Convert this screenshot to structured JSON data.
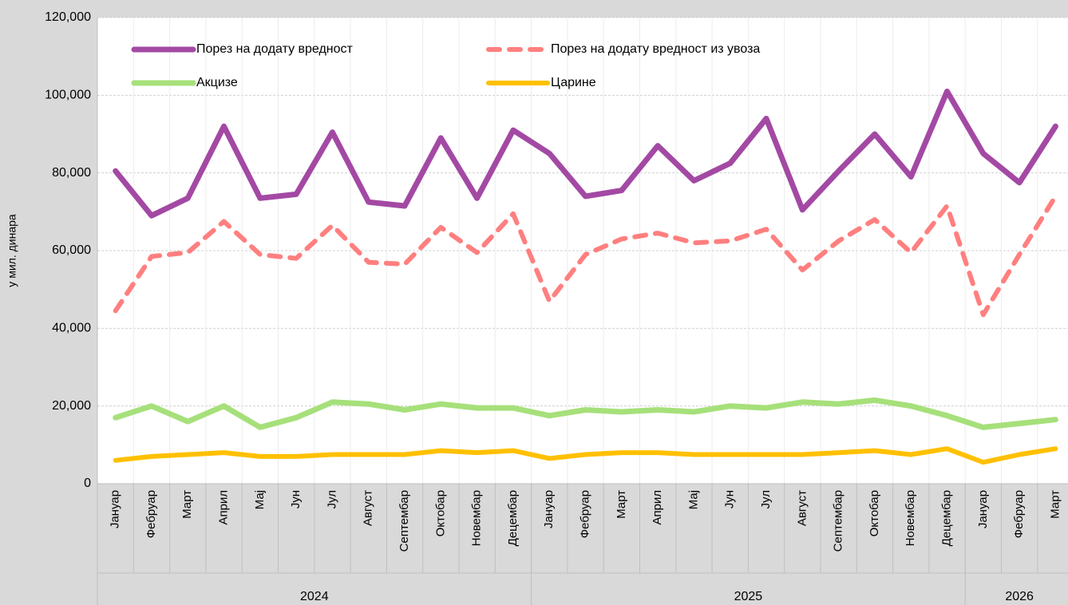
{
  "chart_data": {
    "type": "line",
    "y_axis_label": "у мил. динара",
    "groups": [
      {
        "label": "2024",
        "categories": [
          "Јануар",
          "Фебруар",
          "Март",
          "Април",
          "Мај",
          "Јун",
          "Јул",
          "Август",
          "Септембар",
          "Октобар",
          "Новембар",
          "Децембар"
        ]
      },
      {
        "label": "2025",
        "categories": [
          "Јануар",
          "Фебруар",
          "Март",
          "Април",
          "Мај",
          "Јун",
          "Јул",
          "Август",
          "Септембар",
          "Октобар",
          "Новембар",
          "Децембар"
        ]
      },
      {
        "label": "2026",
        "categories": [
          "Јануар",
          "Фебруар",
          "Март"
        ]
      }
    ],
    "series": [
      {
        "name": "Порез на додату вредност",
        "color": "#a349a4",
        "dashed": false,
        "values": [
          80500,
          69000,
          73500,
          92000,
          73500,
          74500,
          90500,
          72500,
          71500,
          89000,
          73500,
          91000,
          85000,
          74000,
          75500,
          87000,
          78000,
          82500,
          94000,
          70500,
          80500,
          90000,
          79000,
          101000,
          85000,
          77500,
          92000
        ]
      },
      {
        "name": "Порез на додату вредност из увоза",
        "color": "#ff7f7f",
        "dashed": true,
        "values": [
          44500,
          58500,
          59500,
          67500,
          59000,
          58000,
          66500,
          57000,
          56500,
          66000,
          59500,
          69500,
          47000,
          59000,
          63000,
          64500,
          62000,
          62500,
          65500,
          55000,
          62500,
          68000,
          59500,
          71500,
          43500,
          59000,
          74000
        ]
      },
      {
        "name": "Акцизе",
        "color": "#a6e07a",
        "dashed": false,
        "values": [
          17000,
          20000,
          16000,
          20000,
          14500,
          17000,
          21000,
          20500,
          19000,
          20500,
          19500,
          19500,
          17500,
          19000,
          18500,
          19000,
          18500,
          20000,
          19500,
          21000,
          20500,
          21500,
          20000,
          17500,
          14500,
          15500,
          16500
        ]
      },
      {
        "name": "Царине",
        "color": "#ffc000",
        "dashed": false,
        "values": [
          6000,
          7000,
          7500,
          8000,
          7000,
          7000,
          7500,
          7500,
          7500,
          8500,
          8000,
          8500,
          6500,
          7500,
          8000,
          8000,
          7500,
          7500,
          7500,
          7500,
          8000,
          8500,
          7500,
          9000,
          5500,
          7500,
          9000
        ]
      }
    ],
    "ylim": [
      0,
      120000
    ],
    "yticks": [
      0,
      {
        "value": 20000,
        "label": "20,000"
      },
      {
        "value": 40000,
        "label": "40,000"
      },
      {
        "value": 60000,
        "label": "60,000"
      },
      {
        "value": 80000,
        "label": "80,000"
      },
      {
        "value": 100000,
        "label": "100,000"
      },
      {
        "value": 120000,
        "label": "120,000"
      }
    ],
    "grid": true
  }
}
